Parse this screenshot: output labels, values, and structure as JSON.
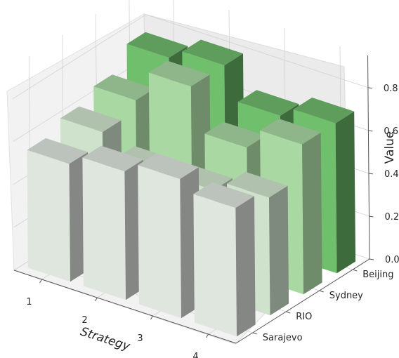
{
  "chart_data": {
    "type": "bar3d",
    "title": "",
    "xlabel": "Strategy",
    "ylabel": "",
    "zlabel": "Value",
    "x_categories": [
      "1",
      "2",
      "3",
      "4"
    ],
    "y_categories": [
      "Sarajevo",
      "RIO",
      "Sydney",
      "Beijing"
    ],
    "z_ticks": [
      "0.0",
      "0.2",
      "0.4",
      "0.6",
      "0.8"
    ],
    "zlim": [
      0,
      0.95
    ],
    "series": [
      {
        "name": "Sarajevo",
        "values": [
          0.55,
          0.6,
          0.65,
          0.6
        ]
      },
      {
        "name": "RIO",
        "values": [
          0.6,
          0.5,
          0.5,
          0.55
        ]
      },
      {
        "name": "Sydney",
        "values": [
          0.65,
          0.8,
          0.6,
          0.7
        ]
      },
      {
        "name": "Beijing",
        "values": [
          0.75,
          0.8,
          0.65,
          0.7
        ]
      }
    ],
    "colors": {
      "Sarajevo": {
        "front": "#dfe6dd",
        "side": "#848784",
        "top": "#bcc3bc"
      },
      "RIO": {
        "front": "#cfe3cc",
        "side": "#7f8a7f",
        "top": "#b0c2ad"
      },
      "Sydney": {
        "front": "#a9d8a3",
        "side": "#6e8c6a",
        "top": "#8fb58a"
      },
      "Beijing": {
        "front": "#6fbf6c",
        "side": "#3d6b3c",
        "top": "#5e9d5b"
      }
    },
    "grid": true
  }
}
